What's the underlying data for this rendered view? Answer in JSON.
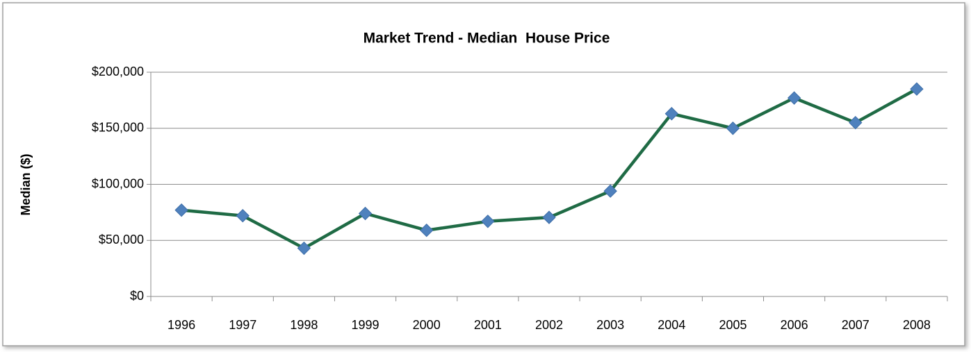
{
  "chart_data": {
    "type": "line",
    "title": "Market Trend - Median  House Price",
    "y_label": "Median ($)",
    "categories": [
      "1996",
      "1997",
      "1998",
      "1999",
      "2000",
      "2001",
      "2002",
      "2003",
      "2004",
      "2005",
      "2006",
      "2007",
      "2008"
    ],
    "values": [
      77000,
      72000,
      43000,
      74000,
      59000,
      67000,
      70500,
      94000,
      163000,
      150000,
      177000,
      155000,
      185000
    ],
    "color": "#1f6b45",
    "marker_color": "#4f81bd",
    "ylim": [
      0,
      200000
    ],
    "yticks": [
      {
        "value": 0,
        "label": "$0"
      },
      {
        "value": 50000,
        "label": "$50,000"
      },
      {
        "value": 100000,
        "label": "$100,000"
      },
      {
        "value": 150000,
        "label": "$150,000"
      },
      {
        "value": 200000,
        "label": "$200,000"
      }
    ],
    "grid": true
  }
}
